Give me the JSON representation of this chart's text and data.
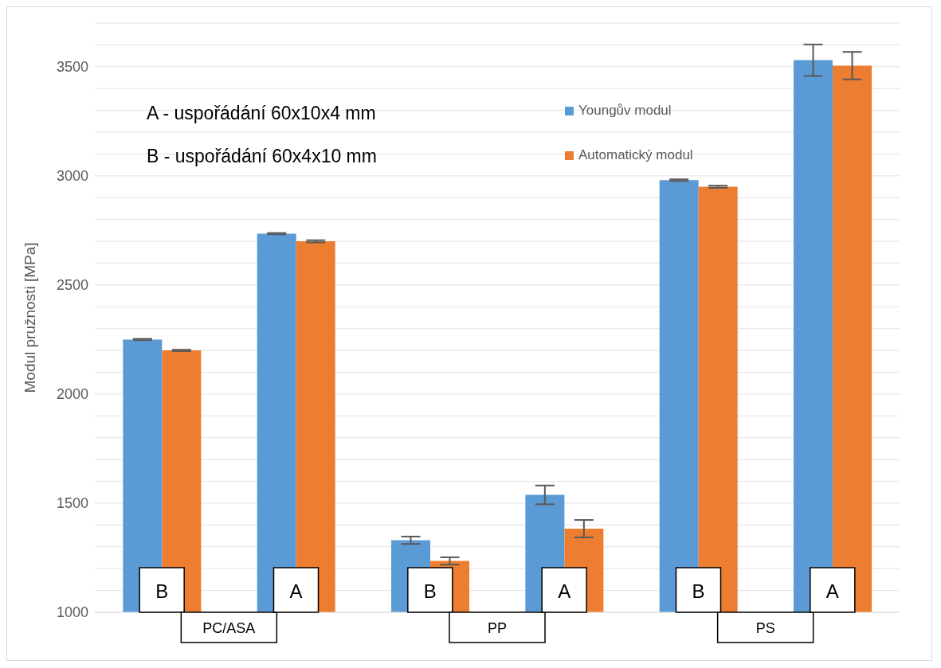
{
  "chart_data": {
    "type": "bar",
    "ylabel": "Modul pružnosti [MPa]",
    "categories": [
      "B",
      "A",
      "B",
      "A",
      "B",
      "A"
    ],
    "series": [
      {
        "name": "Youngův modul",
        "color": "#5b9bd5",
        "values": [
          2250,
          2735,
          1330,
          1538,
          2980,
          3530
        ],
        "errors": [
          3,
          3,
          17,
          43,
          4,
          72
        ]
      },
      {
        "name": "Automatický modul",
        "color": "#ed7d31",
        "values": [
          2200,
          2700,
          1235,
          1383,
          2950,
          3505
        ],
        "errors": [
          3,
          5,
          17,
          40,
          5,
          63
        ]
      }
    ],
    "ylim": [
      1000,
      3700
    ],
    "yticks": [
      1000,
      {
        "value": 1100,
        "label": null
      },
      {
        "value": 1200,
        "label": null
      },
      {
        "value": 1300,
        "label": null
      },
      {
        "value": 1400,
        "label": null
      },
      1500,
      {
        "value": 1600,
        "label": null
      },
      {
        "value": 1700,
        "label": null
      },
      {
        "value": 1800,
        "label": null
      },
      {
        "value": 1900,
        "label": null
      },
      2000,
      {
        "value": 2100,
        "label": null
      },
      {
        "value": 2200,
        "label": null
      },
      {
        "value": 2300,
        "label": null
      },
      {
        "value": 2400,
        "label": null
      },
      2500,
      {
        "value": 2600,
        "label": null
      },
      {
        "value": 2700,
        "label": null
      },
      {
        "value": 2800,
        "label": null
      },
      {
        "value": 2900,
        "label": null
      },
      3000,
      {
        "value": 3100,
        "label": null
      },
      {
        "value": 3200,
        "label": null
      },
      {
        "value": 3300,
        "label": null
      },
      {
        "value": 3400,
        "label": null
      },
      3500,
      {
        "value": 3600,
        "label": null
      },
      {
        "value": 3700,
        "label": null
      }
    ],
    "grid": "y",
    "legend": "top right",
    "annotations": [
      "A - uspořádání 60x10x4 mm",
      "B - uspořádání 60x4x10 mm",
      "PC/ASA",
      "PP",
      "PS"
    ]
  }
}
